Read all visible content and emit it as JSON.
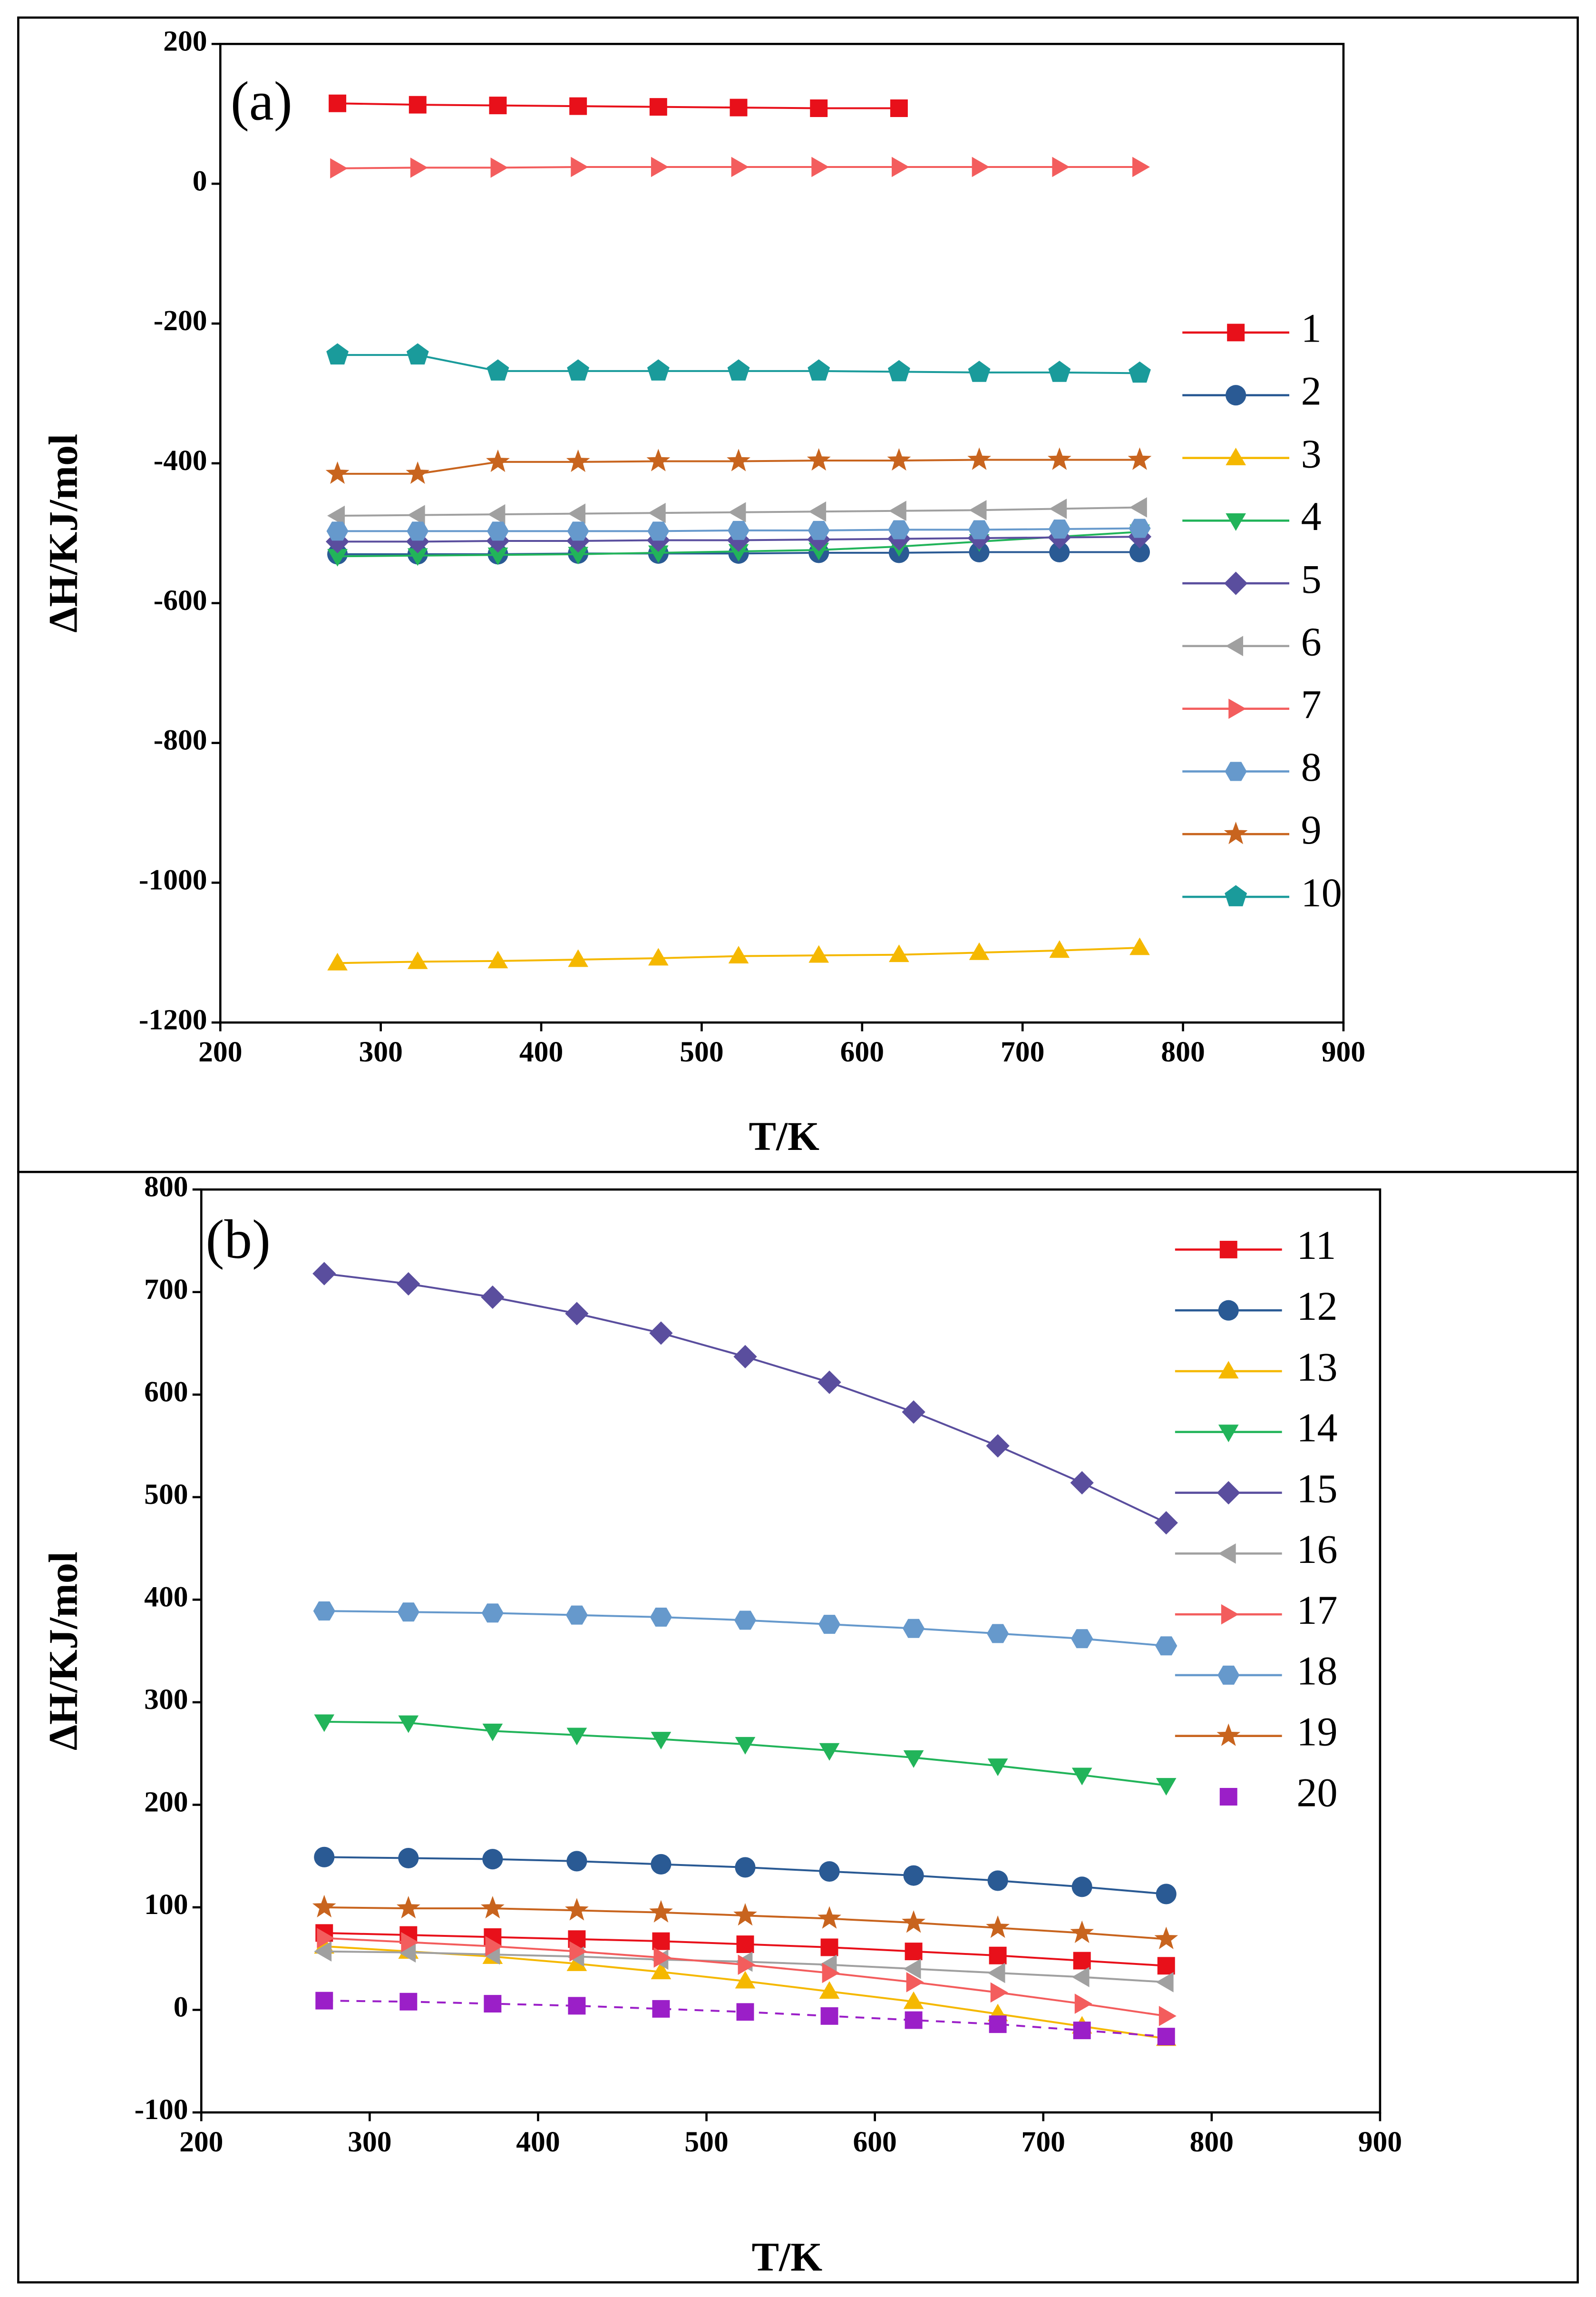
{
  "chart_data": [
    {
      "type": "line",
      "title": "(a)",
      "x_label": "T/K",
      "y_label": "ΔH/KJ/mol",
      "x": [
        273,
        323,
        373,
        423,
        473,
        523,
        573,
        623,
        673,
        723,
        773
      ],
      "xlim": [
        200,
        900
      ],
      "xticks": [
        200,
        300,
        400,
        500,
        600,
        700,
        800,
        900
      ],
      "ylim": [
        -1200,
        200
      ],
      "yticks": [
        -1200,
        -1000,
        -800,
        -600,
        -400,
        -200,
        0,
        200
      ],
      "legend": "right",
      "series": [
        {
          "name": "1",
          "color": "#e8101a",
          "marker": "square",
          "values": [
            115,
            113,
            112,
            111,
            110,
            109,
            108,
            108,
            null,
            null,
            null
          ]
        },
        {
          "name": "2",
          "color": "#2a5a94",
          "marker": "circle",
          "values": [
            -530,
            -530,
            -530,
            -529,
            -529,
            -529,
            -528,
            -528,
            -527,
            -527,
            -527
          ]
        },
        {
          "name": "3",
          "color": "#f5b800",
          "marker": "triangle-up",
          "values": [
            -1115,
            -1113,
            -1112,
            -1110,
            -1108,
            -1105,
            -1104,
            -1103,
            -1100,
            -1097,
            -1093
          ]
        },
        {
          "name": "4",
          "color": "#22b45a",
          "marker": "triangle-down",
          "values": [
            -533,
            -532,
            -531,
            -530,
            -528,
            -526,
            -524,
            -519,
            -512,
            -505,
            -498
          ]
        },
        {
          "name": "5",
          "color": "#5a4e9e",
          "marker": "diamond",
          "values": [
            -512,
            -512,
            -511,
            -511,
            -510,
            -510,
            -509,
            -508,
            -507,
            -506,
            -505
          ]
        },
        {
          "name": "6",
          "color": "#a0a0a0",
          "marker": "triangle-left",
          "values": [
            -475,
            -474,
            -473,
            -472,
            -471,
            -470,
            -469,
            -468,
            -467,
            -465,
            -463
          ]
        },
        {
          "name": "7",
          "color": "#f35d5d",
          "marker": "triangle-right",
          "values": [
            22,
            23,
            23,
            24,
            24,
            24,
            24,
            24,
            24,
            24,
            24
          ]
        },
        {
          "name": "8",
          "color": "#6699cc",
          "marker": "hexagon",
          "values": [
            -497,
            -497,
            -497,
            -497,
            -497,
            -496,
            -496,
            -495,
            -495,
            -494,
            -493
          ]
        },
        {
          "name": "9",
          "color": "#c8641e",
          "marker": "star",
          "values": [
            -415,
            -415,
            -398,
            -398,
            -397,
            -397,
            -396,
            -396,
            -395,
            -395,
            -395
          ]
        },
        {
          "name": "10",
          "color": "#1a9b9b",
          "marker": "pentagon",
          "values": [
            -245,
            -245,
            -268,
            -268,
            -268,
            -268,
            -268,
            -269,
            -270,
            -270,
            -271
          ]
        }
      ]
    },
    {
      "type": "line",
      "title": "(b)",
      "x_label": "T/K",
      "y_label": "ΔH/KJ/mol",
      "x": [
        273,
        323,
        373,
        423,
        473,
        523,
        573,
        623,
        673,
        723,
        773
      ],
      "xlim": [
        200,
        900
      ],
      "xticks": [
        200,
        300,
        400,
        500,
        600,
        700,
        800,
        900
      ],
      "ylim": [
        -100,
        800
      ],
      "yticks": [
        -100,
        0,
        100,
        200,
        300,
        400,
        500,
        600,
        700,
        800
      ],
      "legend": "right",
      "series": [
        {
          "name": "11",
          "color": "#e8101a",
          "marker": "square",
          "values": [
            75,
            73,
            71,
            69,
            67,
            64,
            61,
            57,
            53,
            48,
            43
          ]
        },
        {
          "name": "12",
          "color": "#2a5a94",
          "marker": "circle",
          "values": [
            149,
            148,
            147,
            145,
            142,
            139,
            135,
            131,
            126,
            120,
            113
          ]
        },
        {
          "name": "13",
          "color": "#f5b800",
          "marker": "triangle-up",
          "values": [
            62,
            57,
            52,
            45,
            37,
            28,
            18,
            8,
            -4,
            -16,
            -28
          ]
        },
        {
          "name": "14",
          "color": "#22b45a",
          "marker": "triangle-down",
          "values": [
            281,
            280,
            272,
            268,
            264,
            259,
            253,
            246,
            238,
            229,
            219
          ]
        },
        {
          "name": "15",
          "color": "#5a4e9e",
          "marker": "diamond",
          "values": [
            718,
            708,
            695,
            679,
            660,
            637,
            612,
            583,
            550,
            514,
            475
          ]
        },
        {
          "name": "16",
          "color": "#a0a0a0",
          "marker": "triangle-left",
          "values": [
            57,
            56,
            54,
            52,
            49,
            47,
            44,
            40,
            36,
            32,
            27
          ]
        },
        {
          "name": "17",
          "color": "#f35d5d",
          "marker": "triangle-right",
          "values": [
            70,
            66,
            62,
            57,
            51,
            44,
            36,
            27,
            17,
            6,
            -6
          ]
        },
        {
          "name": "18",
          "color": "#6699cc",
          "marker": "hexagon",
          "values": [
            389,
            388,
            387,
            385,
            383,
            380,
            376,
            372,
            367,
            362,
            355
          ]
        },
        {
          "name": "19",
          "color": "#c8641e",
          "marker": "star",
          "values": [
            100,
            99,
            99,
            97,
            95,
            92,
            89,
            85,
            80,
            75,
            69
          ]
        },
        {
          "name": "20",
          "color": "#9b1fc8",
          "marker": "square",
          "linestyle": "dashed",
          "values": [
            9,
            8,
            6,
            4,
            1,
            -2,
            -6,
            -10,
            -14,
            -20,
            -26
          ]
        }
      ]
    }
  ]
}
